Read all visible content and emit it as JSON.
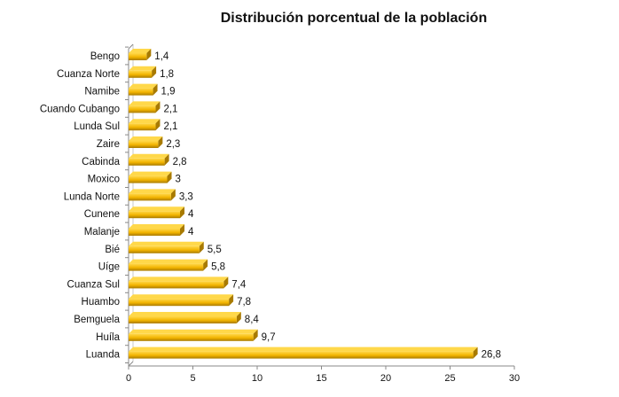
{
  "chart_data": {
    "type": "bar",
    "orientation": "horizontal",
    "title": "Distribución porcentual de la población",
    "categories": [
      "Bengo",
      "Cuanza Norte",
      "Namibe",
      "Cuando Cubango",
      "Lunda Sul",
      "Zaire",
      "Cabinda",
      "Moxico",
      "Lunda Norte",
      "Cunene",
      "Malanje",
      "Bié",
      "Uíge",
      "Cuanza Sul",
      "Huambo",
      "Bemguela",
      "Huíla",
      "Luanda"
    ],
    "values": [
      1.4,
      1.8,
      1.9,
      2.1,
      2.1,
      2.3,
      2.8,
      3,
      3.3,
      4,
      4,
      5.5,
      5.8,
      7.4,
      7.8,
      8.4,
      9.7,
      26.8
    ],
    "value_labels": [
      "1,4",
      "1,8",
      "1,9",
      "2,1",
      "2,1",
      "2,3",
      "2,8",
      "3",
      "3,3",
      "4",
      "4",
      "5,5",
      "5,8",
      "7,4",
      "7,8",
      "8,4",
      "9,7",
      "26,8"
    ],
    "xlim": [
      0,
      30
    ],
    "xticks": [
      0,
      5,
      10,
      15,
      20,
      25,
      30
    ],
    "xlabel": "",
    "ylabel": "",
    "grid": false,
    "colors": {
      "bar": "#f2b400",
      "bar_light": "#ffd84a",
      "bar_dark": "#a87a00",
      "axis": "#888888"
    }
  }
}
